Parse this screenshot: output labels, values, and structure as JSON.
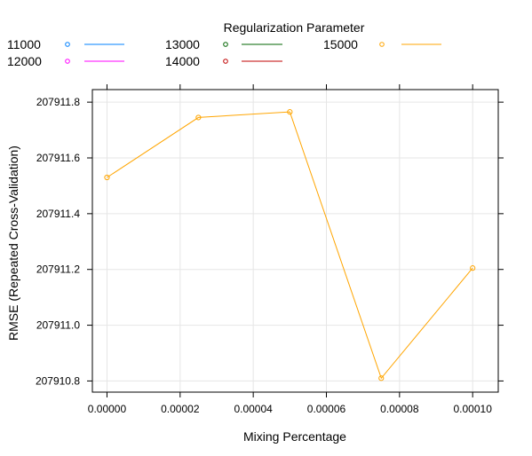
{
  "chart_data": {
    "type": "line",
    "xlabel": "Mixing Percentage",
    "ylabel": "RMSE (Repeated Cross-Validation)",
    "xlim": [
      -4e-06,
      0.000107
    ],
    "ylim": [
      207910.76,
      207911.845
    ],
    "x_ticks": [
      0.0,
      2e-05,
      4e-05,
      6e-05,
      8e-05,
      0.0001
    ],
    "x_tick_labels": [
      "0.00000",
      "0.00002",
      "0.00004",
      "0.00006",
      "0.00008",
      "0.00010"
    ],
    "y_ticks": [
      207910.8,
      207911.0,
      207911.2,
      207911.4,
      207911.6,
      207911.8
    ],
    "y_tick_labels": [
      "207910.8",
      "207911.0",
      "207911.2",
      "207911.4",
      "207911.6",
      "207911.8"
    ],
    "grid": true,
    "legend": {
      "title": "Regularization Parameter",
      "placement": "top",
      "entries": [
        {
          "name": "11000",
          "color": "#0080ff"
        },
        {
          "name": "12000",
          "color": "#ff00ff"
        },
        {
          "name": "13000",
          "color": "#006400"
        },
        {
          "name": "14000",
          "color": "#c00000"
        },
        {
          "name": "15000",
          "color": "#ffa500"
        }
      ]
    },
    "series": [
      {
        "name": "15000",
        "color": "#ffa500",
        "x": [
          0.0,
          2.5e-05,
          5e-05,
          7.5e-05,
          0.0001
        ],
        "y": [
          207911.53,
          207911.745,
          207911.765,
          207910.81,
          207911.205
        ]
      }
    ]
  }
}
